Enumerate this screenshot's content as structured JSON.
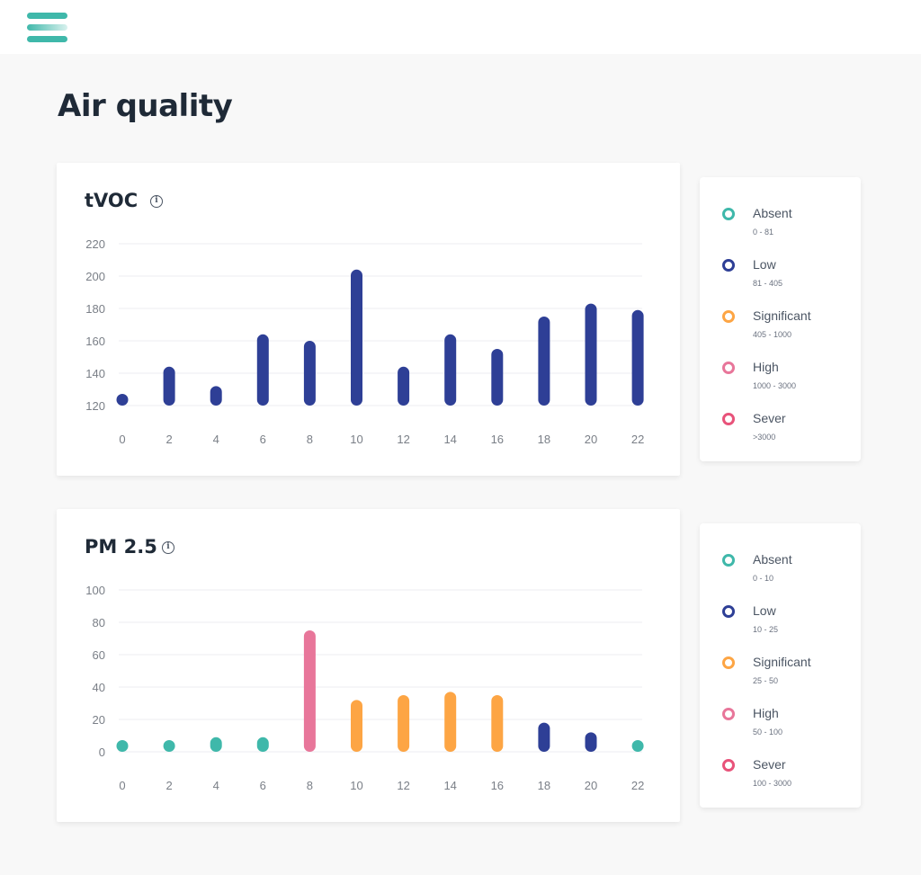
{
  "header": {
    "menu_icon": "hamburger-menu-icon"
  },
  "page": {
    "title": "Air quality"
  },
  "colors": {
    "Absent": "#3fb8aa",
    "Low": "#2e3f96",
    "Significant": "#fda544",
    "High": "#e8769a",
    "Sever": "#e8537a"
  },
  "tvoc": {
    "title": "tVOC",
    "info_icon": "info-icon",
    "legend": [
      {
        "label": "Absent",
        "range": "0 - 81"
      },
      {
        "label": "Low",
        "range": "81 - 405"
      },
      {
        "label": "Significant",
        "range": "405 - 1000"
      },
      {
        "label": "High",
        "range": "1000 - 3000"
      },
      {
        "label": "Sever",
        "range": ">3000"
      }
    ]
  },
  "pm25": {
    "title": "PM 2.5",
    "info_icon": "info-icon",
    "legend": [
      {
        "label": "Absent",
        "range": "0 - 10"
      },
      {
        "label": "Low",
        "range": "10 - 25"
      },
      {
        "label": "Significant",
        "range": "25 - 50"
      },
      {
        "label": "High",
        "range": "50 - 100"
      },
      {
        "label": "Sever",
        "range": "100 - 3000"
      }
    ]
  },
  "chart_data": [
    {
      "type": "bar",
      "title": "tVOC",
      "x": [
        0,
        2,
        4,
        6,
        8,
        10,
        12,
        14,
        16,
        18,
        20,
        22
      ],
      "values": [
        127,
        144,
        132,
        164,
        160,
        204,
        144,
        164,
        155,
        175,
        183,
        179
      ],
      "bar_categories": [
        "Low",
        "Low",
        "Low",
        "Low",
        "Low",
        "Low",
        "Low",
        "Low",
        "Low",
        "Low",
        "Low",
        "Low"
      ],
      "yticks": [
        120,
        140,
        160,
        180,
        200,
        220
      ],
      "ylim": [
        120,
        220
      ],
      "grid": true
    },
    {
      "type": "bar",
      "title": "PM 2.5",
      "x": [
        0,
        2,
        4,
        6,
        8,
        10,
        12,
        14,
        16,
        18,
        20,
        22
      ],
      "values": [
        7,
        6,
        9,
        9,
        75,
        32,
        35,
        37,
        35,
        18,
        12,
        3
      ],
      "bar_categories": [
        "Absent",
        "Absent",
        "Absent",
        "Absent",
        "High",
        "Significant",
        "Significant",
        "Significant",
        "Significant",
        "Low",
        "Low",
        "Absent"
      ],
      "yticks": [
        0,
        20,
        40,
        60,
        80,
        100
      ],
      "ylim": [
        0,
        100
      ],
      "grid": true
    }
  ]
}
